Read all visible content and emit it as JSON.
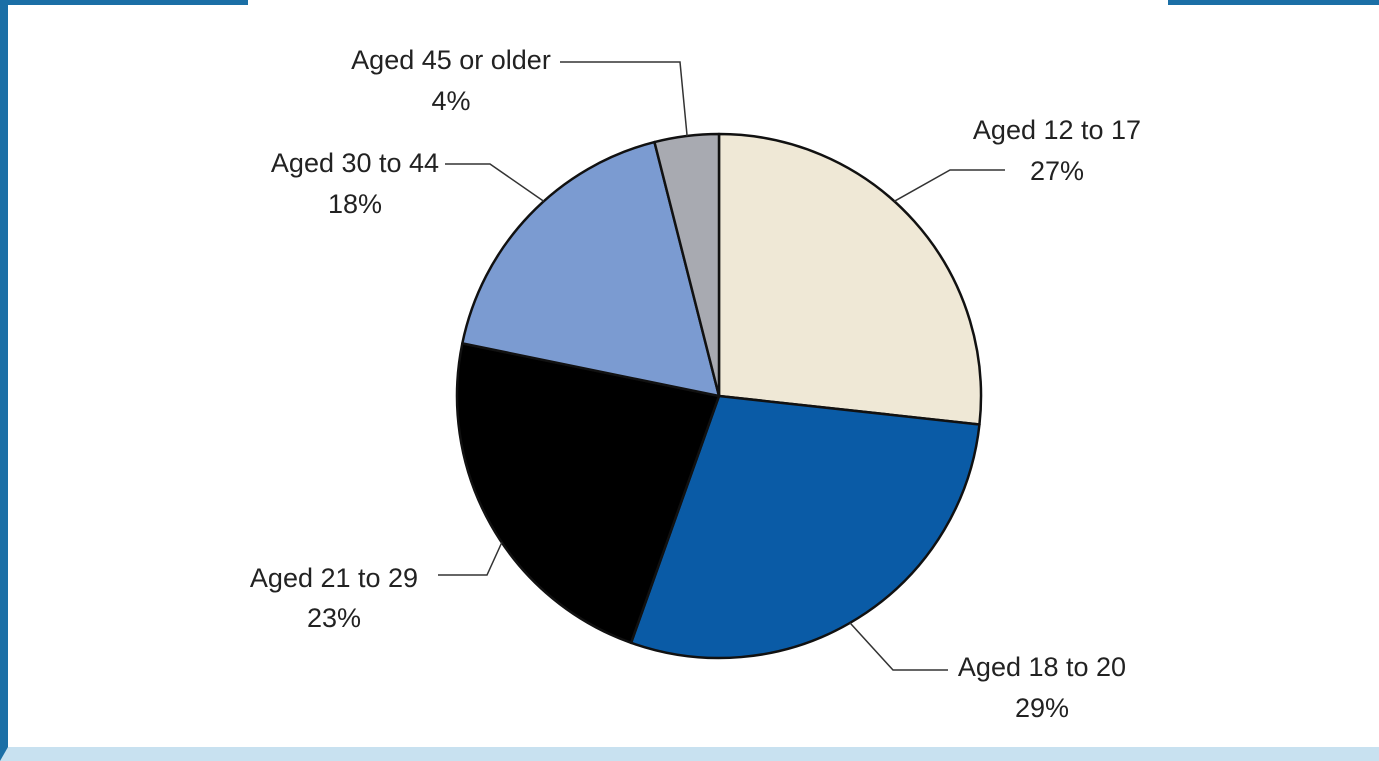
{
  "chart_data": {
    "type": "pie",
    "title": "",
    "start_angle_deg": 0,
    "direction": "clockwise",
    "slices": [
      {
        "label": "Aged 12 to 17",
        "value": 27,
        "value_text": "27%",
        "color": "#efe8d6"
      },
      {
        "label": "Aged 18 to 20",
        "value": 29,
        "value_text": "29%",
        "color": "#0a5ba6"
      },
      {
        "label": "Aged 21 to 29",
        "value": 23,
        "value_text": "23%",
        "color": "#000000"
      },
      {
        "label": "Aged 30 to 44",
        "value": 18,
        "value_text": "18%",
        "color": "#7b9bd1"
      },
      {
        "label": "Aged 45 or older",
        "value": 4,
        "value_text": "4%",
        "color": "#a8aab1"
      }
    ],
    "legend": "none"
  },
  "colors": {
    "frame_border": "#1b6fa6",
    "frame_bottom": "#c8e1f0",
    "slice_stroke": "#111111",
    "leader_line": "#333333"
  }
}
